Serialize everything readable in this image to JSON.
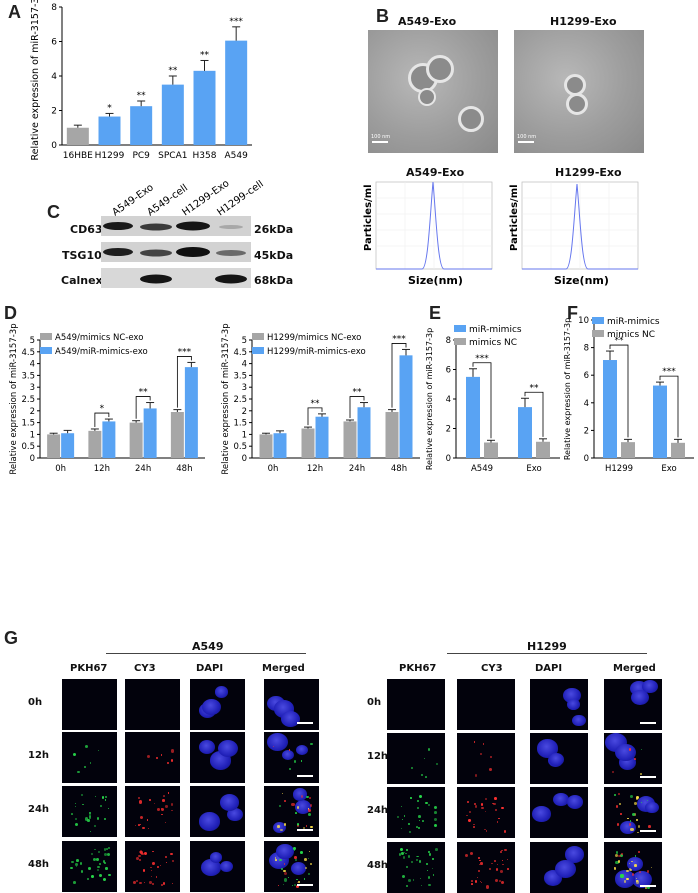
{
  "panels": {
    "a": "A",
    "b": "B",
    "c": "C",
    "d": "D",
    "e": "E",
    "f": "F",
    "g": "G"
  },
  "chart_data": [
    {
      "id": "A",
      "type": "bar",
      "ylabel": "Relative expression of miR-3157-3p",
      "categories": [
        "16HBE",
        "H1299",
        "PC9",
        "SPCA1",
        "H358",
        "A549"
      ],
      "values": [
        1.0,
        1.65,
        2.25,
        3.5,
        4.3,
        6.05
      ],
      "errors": [
        0.15,
        0.18,
        0.3,
        0.5,
        0.6,
        0.8
      ],
      "significance": [
        "",
        "*",
        "**",
        "**",
        "**",
        "***"
      ],
      "colors": [
        "#a6a6a6",
        "#59a3f3",
        "#59a3f3",
        "#59a3f3",
        "#59a3f3",
        "#59a3f3"
      ],
      "ylim": [
        0,
        8
      ],
      "yticks": [
        0,
        2,
        4,
        6,
        8
      ]
    },
    {
      "id": "D1",
      "type": "bar",
      "ylabel": "Relative expression of miR-3157-3p",
      "categories": [
        "0h",
        "12h",
        "24h",
        "48h"
      ],
      "series": [
        {
          "name": "A549/mimics NC-exo",
          "values": [
            1.0,
            1.15,
            1.5,
            1.95
          ],
          "errors": [
            0.05,
            0.08,
            0.08,
            0.1
          ],
          "color": "#a6a6a6"
        },
        {
          "name": "A549/miR-mimics-exo",
          "values": [
            1.05,
            1.55,
            2.1,
            3.85
          ],
          "errors": [
            0.12,
            0.1,
            0.25,
            0.2
          ],
          "color": "#59a3f3"
        }
      ],
      "significance": [
        "",
        "*",
        "**",
        "***"
      ],
      "ylim": [
        0,
        5
      ],
      "yticks": [
        0,
        0.5,
        1,
        1.5,
        2,
        2.5,
        3,
        3.5,
        4,
        4.5,
        5
      ]
    },
    {
      "id": "D2",
      "type": "bar",
      "ylabel": "Relative expression of miR-3157-3p",
      "categories": [
        "0h",
        "12h",
        "24h",
        "48h"
      ],
      "series": [
        {
          "name": "H1299/mimics NC-exo",
          "values": [
            1.0,
            1.25,
            1.55,
            1.95
          ],
          "errors": [
            0.05,
            0.06,
            0.06,
            0.1
          ],
          "color": "#a6a6a6"
        },
        {
          "name": "H1299/miR-mimics-exo",
          "values": [
            1.05,
            1.75,
            2.15,
            4.35
          ],
          "errors": [
            0.1,
            0.12,
            0.2,
            0.25
          ],
          "color": "#59a3f3"
        }
      ],
      "significance": [
        "",
        "**",
        "**",
        "***"
      ],
      "ylim": [
        0,
        5
      ],
      "yticks": [
        0,
        0.5,
        1,
        1.5,
        2,
        2.5,
        3,
        3.5,
        4,
        4.5,
        5
      ]
    },
    {
      "id": "E",
      "type": "bar",
      "ylabel": "Relative expression of miR-3157-3p",
      "categories": [
        "A549",
        "Exo"
      ],
      "series": [
        {
          "name": "miR-mimics",
          "values": [
            5.5,
            3.45
          ],
          "errors": [
            0.55,
            0.6
          ],
          "color": "#59a3f3"
        },
        {
          "name": "mimics NC",
          "values": [
            1.05,
            1.1
          ],
          "errors": [
            0.15,
            0.2
          ],
          "color": "#a6a6a6"
        }
      ],
      "significance": [
        "***",
        "**"
      ],
      "ylim": [
        0,
        8
      ],
      "yticks": [
        0,
        2,
        4,
        6,
        8
      ]
    },
    {
      "id": "F",
      "type": "bar",
      "ylabel": "Relative expression of miR-3157-3p",
      "categories": [
        "H1299",
        "Exo"
      ],
      "series": [
        {
          "name": "miR-mimics",
          "values": [
            7.1,
            5.25
          ],
          "errors": [
            0.65,
            0.25
          ],
          "color": "#59a3f3"
        },
        {
          "name": "mimics NC",
          "values": [
            1.15,
            1.1
          ],
          "errors": [
            0.2,
            0.25
          ],
          "color": "#a6a6a6"
        }
      ],
      "significance": [
        "**",
        "***"
      ],
      "ylim": [
        0,
        10
      ],
      "yticks": [
        0,
        2,
        4,
        6,
        8,
        10
      ]
    }
  ],
  "panelB": {
    "titles": [
      "A549-Exo",
      "H1299-Exo"
    ],
    "scale_label": "100 nm",
    "nta_ylabel": "Particles/ml",
    "nta_xlabel": "Size(nm)"
  },
  "panelC": {
    "columns": [
      "A549-Exo",
      "A549-cell",
      "H1299-Exo",
      "H1299-cell"
    ],
    "rows": [
      {
        "name": "CD63",
        "kda": "26kDa"
      },
      {
        "name": "TSG101",
        "kda": "45kDa"
      },
      {
        "name": "Calnexin",
        "kda": "68kDa"
      }
    ]
  },
  "panelG": {
    "groups": [
      "A549",
      "H1299"
    ],
    "channels": [
      "PKH67",
      "CY3",
      "DAPI",
      "Merged"
    ],
    "times": [
      "0h",
      "12h",
      "24h",
      "48h"
    ]
  }
}
